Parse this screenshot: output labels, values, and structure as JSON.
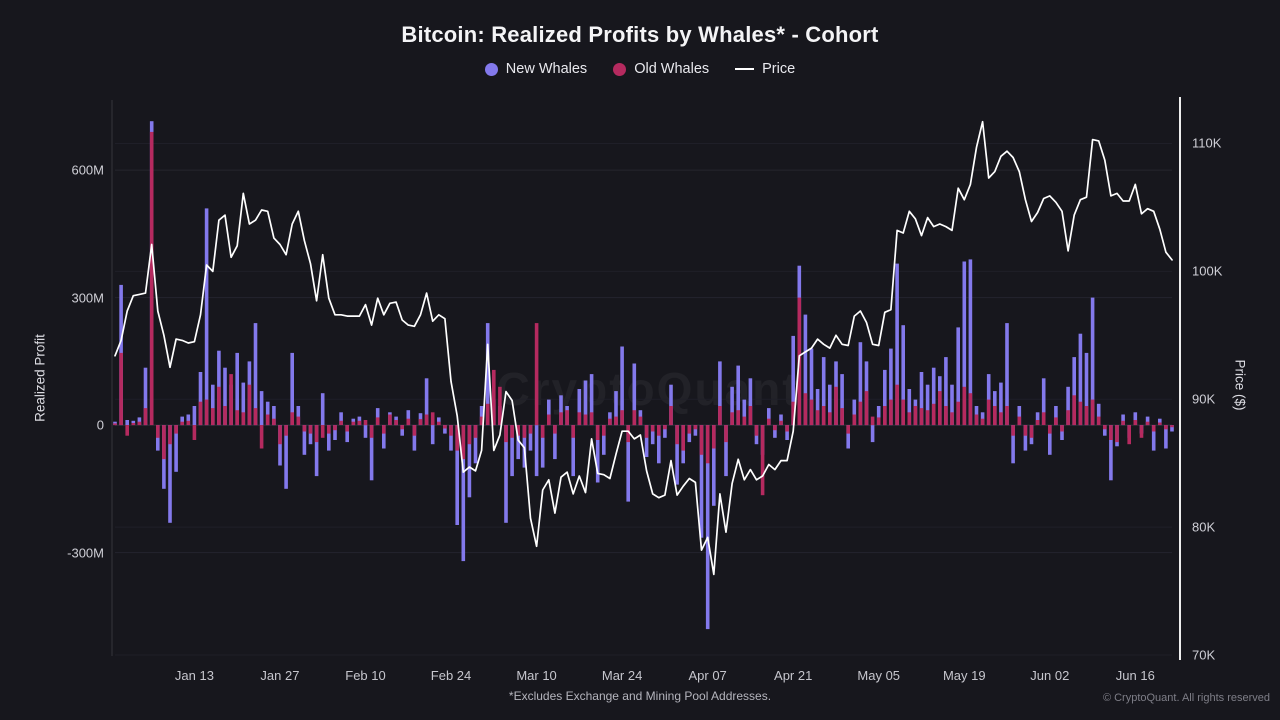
{
  "title": "Bitcoin: Realized Profits by Whales* - Cohort",
  "watermark": "CryptoQuant",
  "legend": {
    "items": [
      {
        "label": "New Whales",
        "color": "#8379ec",
        "marker": "circle"
      },
      {
        "label": "Old Whales",
        "color": "#b52a5f",
        "marker": "circle"
      },
      {
        "label": "Price",
        "color": "#ffffff",
        "marker": "line"
      }
    ]
  },
  "footer": {
    "note": "*Excludes Exchange and Mining Pool Addresses.",
    "copyright": "© CryptoQuant. All rights reserved"
  },
  "left_axis": {
    "label": "Realized Profit",
    "range": [
      -541,
      765
    ],
    "ticks": [
      {
        "label": "600M",
        "value": 600
      },
      {
        "label": "300M",
        "value": 300
      },
      {
        "label": "0",
        "value": 0
      },
      {
        "label": "-300M",
        "value": -300
      }
    ]
  },
  "right_axis": {
    "label": "Price ($)",
    "range": [
      70,
      113.4
    ],
    "ticks": [
      {
        "label": "110K",
        "value": 110
      },
      {
        "label": "100K",
        "value": 100
      },
      {
        "label": "90K",
        "value": 90
      },
      {
        "label": "80K",
        "value": 80
      },
      {
        "label": "70K",
        "value": 70
      }
    ]
  },
  "x_axis": {
    "ticks": [
      {
        "label": "Jan 13",
        "index": 13
      },
      {
        "label": "Jan 27",
        "index": 27
      },
      {
        "label": "Feb 10",
        "index": 41
      },
      {
        "label": "Feb 24",
        "index": 55
      },
      {
        "label": "Mar 10",
        "index": 69
      },
      {
        "label": "Mar 24",
        "index": 83
      },
      {
        "label": "Apr 07",
        "index": 97
      },
      {
        "label": "Apr 21",
        "index": 111
      },
      {
        "label": "May 05",
        "index": 125
      },
      {
        "label": "May 19",
        "index": 139
      },
      {
        "label": "Jun 02",
        "index": 153
      },
      {
        "label": "Jun 16",
        "index": 167
      }
    ]
  },
  "chart_data": {
    "type": "combo",
    "bar_unit": "millions USD realized profit (left axis)",
    "line_unit": "thousands USD BTC price (right axis)",
    "n_points": 174,
    "series": [
      {
        "name": "New Whales",
        "type": "bar",
        "axis": "left",
        "color": "#8379ec",
        "values": [
          8,
          330,
          12,
          10,
          18,
          135,
          715,
          -60,
          -150,
          -230,
          -110,
          20,
          25,
          45,
          125,
          510,
          95,
          175,
          135,
          95,
          170,
          100,
          150,
          240,
          80,
          55,
          45,
          -95,
          -150,
          170,
          45,
          -70,
          -45,
          -120,
          75,
          -60,
          -35,
          30,
          -40,
          15,
          20,
          -30,
          -130,
          40,
          -55,
          30,
          20,
          -25,
          35,
          -60,
          28,
          110,
          -45,
          18,
          -20,
          -60,
          -235,
          -320,
          -170,
          -90,
          45,
          240,
          60,
          45,
          -230,
          -120,
          -80,
          -100,
          -60,
          -120,
          -100,
          60,
          -80,
          70,
          45,
          -120,
          85,
          105,
          120,
          -135,
          -70,
          30,
          80,
          185,
          -180,
          145,
          35,
          -75,
          -45,
          -90,
          -30,
          95,
          -140,
          -90,
          -40,
          -25,
          -265,
          -480,
          -190,
          150,
          -120,
          90,
          140,
          60,
          110,
          -45,
          -70,
          40,
          -30,
          25,
          -35,
          210,
          375,
          260,
          180,
          85,
          160,
          95,
          150,
          120,
          -55,
          60,
          195,
          150,
          -40,
          45,
          130,
          180,
          380,
          235,
          85,
          60,
          125,
          95,
          135,
          115,
          160,
          95,
          230,
          385,
          390,
          45,
          30,
          120,
          80,
          100,
          240,
          -90,
          45,
          -60,
          -45,
          30,
          110,
          -70,
          45,
          -35,
          90,
          160,
          215,
          170,
          300,
          50,
          -25,
          -130,
          -50,
          25,
          -30,
          30,
          -20,
          20,
          -60,
          15,
          -55,
          -15
        ]
      },
      {
        "name": "Old Whales",
        "type": "bar",
        "axis": "left",
        "color": "#b52a5f",
        "values": [
          4,
          170,
          -25,
          5,
          8,
          40,
          690,
          -30,
          -80,
          -45,
          -20,
          8,
          10,
          -35,
          55,
          60,
          40,
          90,
          45,
          120,
          35,
          30,
          95,
          40,
          -55,
          25,
          15,
          -45,
          -25,
          30,
          20,
          -15,
          -20,
          -40,
          -30,
          -20,
          -12,
          10,
          -15,
          8,
          10,
          12,
          -30,
          18,
          -20,
          25,
          12,
          -10,
          15,
          -25,
          14,
          25,
          30,
          8,
          -8,
          -25,
          -60,
          -80,
          -45,
          -30,
          20,
          50,
          130,
          90,
          -40,
          -30,
          -25,
          -30,
          -20,
          240,
          -30,
          25,
          -20,
          30,
          35,
          -30,
          30,
          25,
          30,
          -35,
          -25,
          15,
          20,
          35,
          -40,
          35,
          20,
          -30,
          -15,
          -25,
          -10,
          45,
          -45,
          -60,
          -20,
          -10,
          -70,
          -90,
          -55,
          45,
          -40,
          30,
          35,
          20,
          45,
          -25,
          -165,
          15,
          -12,
          10,
          -15,
          55,
          300,
          75,
          60,
          35,
          45,
          30,
          90,
          40,
          -20,
          25,
          55,
          80,
          20,
          18,
          45,
          60,
          95,
          60,
          30,
          45,
          40,
          35,
          50,
          80,
          45,
          30,
          55,
          90,
          75,
          25,
          15,
          60,
          45,
          30,
          45,
          -25,
          20,
          -25,
          -30,
          12,
          30,
          -20,
          18,
          -15,
          35,
          70,
          55,
          45,
          60,
          20,
          -10,
          -35,
          -40,
          10,
          -45,
          12,
          -30,
          8,
          -15,
          6,
          -10,
          -5
        ]
      },
      {
        "name": "Price",
        "type": "line",
        "axis": "right",
        "color": "#ffffff",
        "values": [
          93.4,
          94.6,
          96.9,
          98.1,
          98.2,
          98.3,
          102.1,
          96.9,
          95.0,
          92.5,
          94.7,
          94.6,
          94.4,
          94.5,
          96.6,
          100.5,
          100.0,
          104.0,
          104.4,
          101.1,
          102.0,
          106.1,
          103.7,
          104.0,
          104.8,
          104.7,
          102.6,
          102.1,
          101.3,
          103.7,
          104.7,
          102.4,
          100.6,
          97.7,
          101.3,
          97.9,
          96.6,
          96.6,
          96.5,
          96.5,
          96.5,
          97.4,
          95.8,
          97.9,
          96.6,
          97.5,
          97.6,
          96.2,
          95.8,
          95.7,
          96.6,
          98.3,
          96.1,
          96.6,
          96.3,
          91.4,
          88.7,
          84.3,
          84.7,
          84.4,
          86.0,
          94.3,
          86.0,
          87.2,
          90.6,
          89.9,
          86.8,
          86.2,
          80.7,
          78.5,
          82.9,
          83.7,
          81.1,
          83.9,
          84.3,
          82.6,
          84.0,
          82.7,
          86.9,
          84.2,
          84.1,
          83.8,
          85.7,
          87.5,
          87.5,
          86.9,
          87.2,
          84.4,
          82.6,
          82.3,
          82.5,
          85.2,
          82.5,
          83.2,
          83.8,
          83.5,
          78.2,
          79.2,
          76.3,
          82.6,
          79.6,
          83.4,
          85.3,
          83.7,
          84.5,
          83.7,
          84.0,
          84.9,
          84.5,
          85.2,
          85.2,
          87.5,
          93.4,
          93.7,
          94.0,
          94.7,
          94.3,
          94.0,
          95.0,
          94.3,
          94.2,
          96.5,
          96.9,
          96.0,
          94.3,
          94.2,
          96.8,
          97.0,
          103.2,
          103.0,
          104.7,
          104.1,
          102.8,
          104.2,
          103.5,
          103.7,
          103.5,
          103.2,
          106.5,
          105.6,
          106.8,
          109.7,
          111.7,
          107.3,
          107.8,
          109.0,
          109.4,
          108.9,
          107.8,
          105.6,
          103.9,
          104.6,
          105.7,
          105.9,
          105.4,
          104.7,
          101.6,
          104.4,
          105.6,
          105.8,
          110.3,
          110.2,
          108.7,
          105.9,
          106.1,
          105.5,
          105.5,
          106.8,
          104.5,
          104.9,
          104.7,
          103.3,
          101.5,
          100.9
        ]
      }
    ]
  }
}
